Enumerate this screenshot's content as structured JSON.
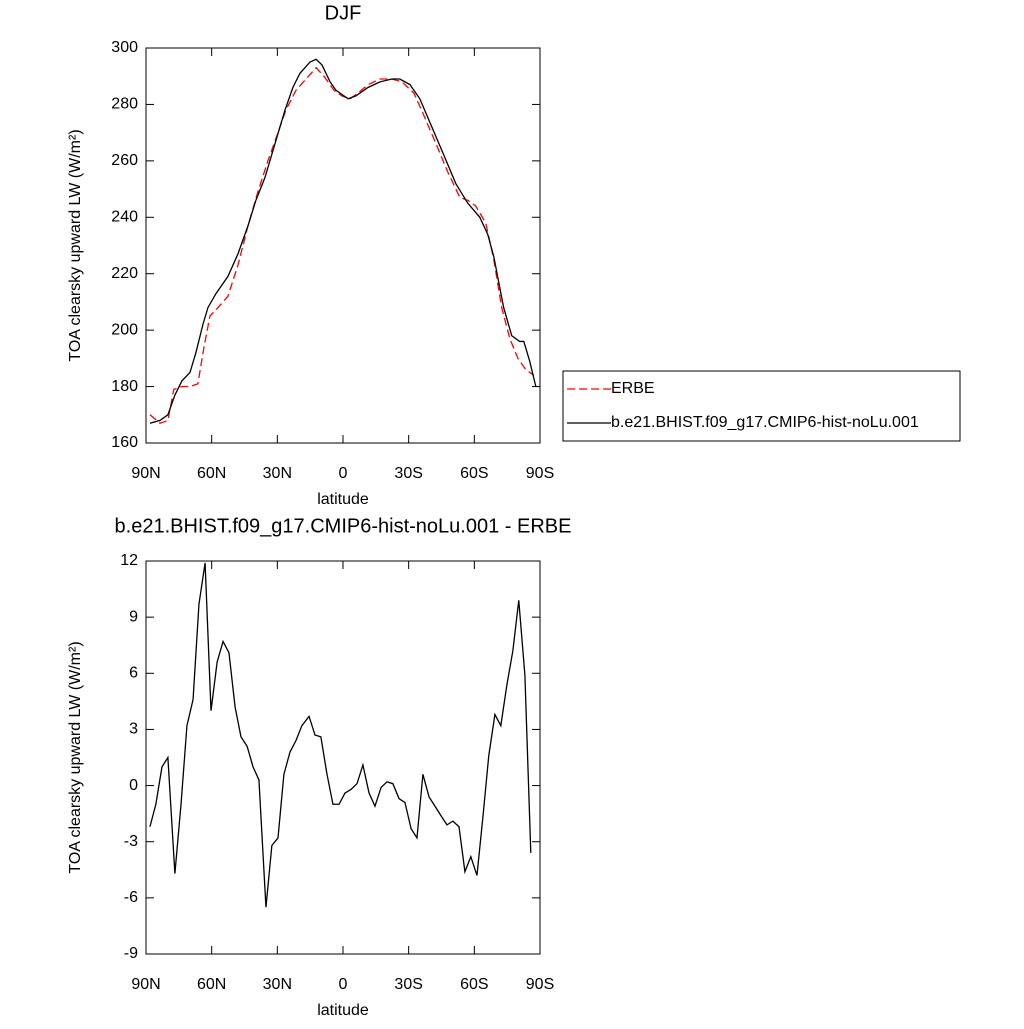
{
  "chart_data": [
    {
      "type": "line",
      "title": "DJF",
      "xlabel": "latitude",
      "ylabel": "TOA clearsky upward LW (W/m²)",
      "xlim": [
        90,
        -90
      ],
      "ylim": [
        160,
        300
      ],
      "xticks": [
        {
          "value": 90,
          "label": "90N"
        },
        {
          "value": 60,
          "label": "60N"
        },
        {
          "value": 30,
          "label": "30N"
        },
        0,
        {
          "value": -30,
          "label": "30S"
        },
        {
          "value": -60,
          "label": "60S"
        },
        {
          "value": -90,
          "label": "90S"
        }
      ],
      "yticks": [
        160,
        180,
        200,
        220,
        240,
        260,
        280,
        300
      ],
      "legend": "right",
      "series": [
        {
          "name": "ERBE",
          "color": "#ff0000",
          "dash": true,
          "x": [
            88.2,
            83.6,
            80,
            77.3,
            73.6,
            69.9,
            66.3,
            63.5,
            60.8,
            57.1,
            52.6,
            48,
            43.4,
            38.9,
            34.3,
            30.6,
            26.1,
            21.5,
            16.9,
            12.3,
            8.7,
            4.1,
            0.5,
            -3.2,
            -6.8,
            -11.4,
            -16.9,
            -22.3,
            -26.9,
            -32.4,
            -37,
            -42.5,
            -47.9,
            -53.4,
            -57,
            -60.6,
            -65.2,
            -68.9,
            -72.5,
            -76.2,
            -79.9,
            -83.5,
            -87.2
          ],
          "values": [
            170,
            167,
            168,
            179,
            180,
            180,
            181,
            194,
            205,
            208,
            212,
            223,
            237,
            249,
            260,
            268,
            278,
            285,
            289,
            293,
            290,
            285,
            283,
            282,
            284,
            287,
            289,
            289,
            288,
            284,
            276,
            266,
            256,
            247,
            246,
            244,
            238,
            225,
            208,
            197,
            190,
            186,
            184
          ]
        },
        {
          "name": "b.e21.BHIST.f09_g17.CMIP6-hist-noLu.001",
          "color": "#000000",
          "dash": false,
          "x": [
            88.2,
            83.6,
            80,
            76.8,
            73.6,
            69.9,
            67.2,
            64,
            61.7,
            58,
            52.6,
            48,
            43.4,
            39.8,
            35.7,
            31.1,
            26.5,
            22.9,
            19.7,
            15.1,
            12.3,
            9.6,
            5.9,
            3.2,
            -2.3,
            -5.9,
            -11.4,
            -16.9,
            -22.3,
            -26,
            -30.6,
            -35.1,
            -40.6,
            -46.1,
            -51.5,
            -57,
            -62.5,
            -66.1,
            -68.9,
            -73.4,
            -77.1,
            -80.7,
            -82.6,
            -85.3,
            -88.1
          ],
          "values": [
            167,
            168,
            170,
            177,
            182,
            185,
            192,
            202,
            208,
            213,
            219,
            227,
            237,
            246,
            254,
            266,
            278,
            286,
            291,
            295,
            296,
            294,
            288,
            285,
            282,
            283,
            286,
            288,
            289,
            289,
            287,
            282,
            272,
            262,
            252,
            245,
            240,
            234,
            226,
            208,
            198,
            196,
            196,
            189,
            180
          ]
        }
      ]
    },
    {
      "type": "line",
      "title": "b.e21.BHIST.f09_g17.CMIP6-hist-noLu.001 - ERBE",
      "xlabel": "latitude",
      "ylabel": "TOA clearsky upward LW (W/m²)",
      "xlim": [
        90,
        -90
      ],
      "ylim": [
        -9,
        12
      ],
      "xticks": [
        {
          "value": 90,
          "label": "90N"
        },
        {
          "value": 60,
          "label": "60N"
        },
        {
          "value": 30,
          "label": "30N"
        },
        0,
        {
          "value": -30,
          "label": "30S"
        },
        {
          "value": -60,
          "label": "60S"
        },
        {
          "value": -90,
          "label": "90S"
        }
      ],
      "yticks": [
        -9,
        -6,
        -3,
        0,
        3,
        6,
        9,
        12
      ],
      "series": [
        {
          "color": "#000000",
          "dash": false,
          "x": [
            88.2,
            85.5,
            82.7,
            80,
            76.8,
            74,
            71.3,
            68.5,
            65.8,
            63,
            60.3,
            57.5,
            54.8,
            52.1,
            49.3,
            46.6,
            43.8,
            41.1,
            38.4,
            35.2,
            32.5,
            29.7,
            27,
            24.2,
            21.5,
            18.8,
            15.5,
            12.8,
            10.1,
            7.3,
            4.6,
            1.8,
            -0.9,
            -3.7,
            -6.4,
            -9.1,
            -11.9,
            -14.6,
            -17.4,
            -20.1,
            -22.8,
            -25.6,
            -28.3,
            -31.1,
            -33.8,
            -36.5,
            -39.3,
            -42,
            -44.7,
            -47.5,
            -50.2,
            -53,
            -55.7,
            -58.4,
            -61.2,
            -63.9,
            -66.6,
            -69.4,
            -72.1,
            -74.9,
            -77.6,
            -80.3,
            -83.1,
            -85.8
          ],
          "values": [
            -2.2,
            -1,
            1,
            1.5,
            -4.7,
            -1,
            3.2,
            4.6,
            9.7,
            11.9,
            4,
            6.6,
            7.7,
            7.1,
            4.2,
            2.6,
            2.1,
            1,
            0.3,
            -6.5,
            -3.2,
            -2.8,
            0.6,
            1.8,
            2.4,
            3.2,
            3.7,
            2.7,
            2.6,
            0.6,
            -1,
            -1,
            -0.4,
            -0.2,
            0.1,
            1.1,
            -0.4,
            -1.1,
            -0.1,
            0.2,
            0.1,
            -0.7,
            -0.9,
            -2.3,
            -2.8,
            0.6,
            -0.6,
            -1.1,
            -1.6,
            -2.1,
            -1.9,
            -2.2,
            -4.6,
            -3.8,
            -4.8,
            -1.7,
            1.6,
            3.8,
            3.2,
            5.4,
            7.2,
            9.9,
            5.9,
            -3.6
          ]
        }
      ]
    }
  ]
}
